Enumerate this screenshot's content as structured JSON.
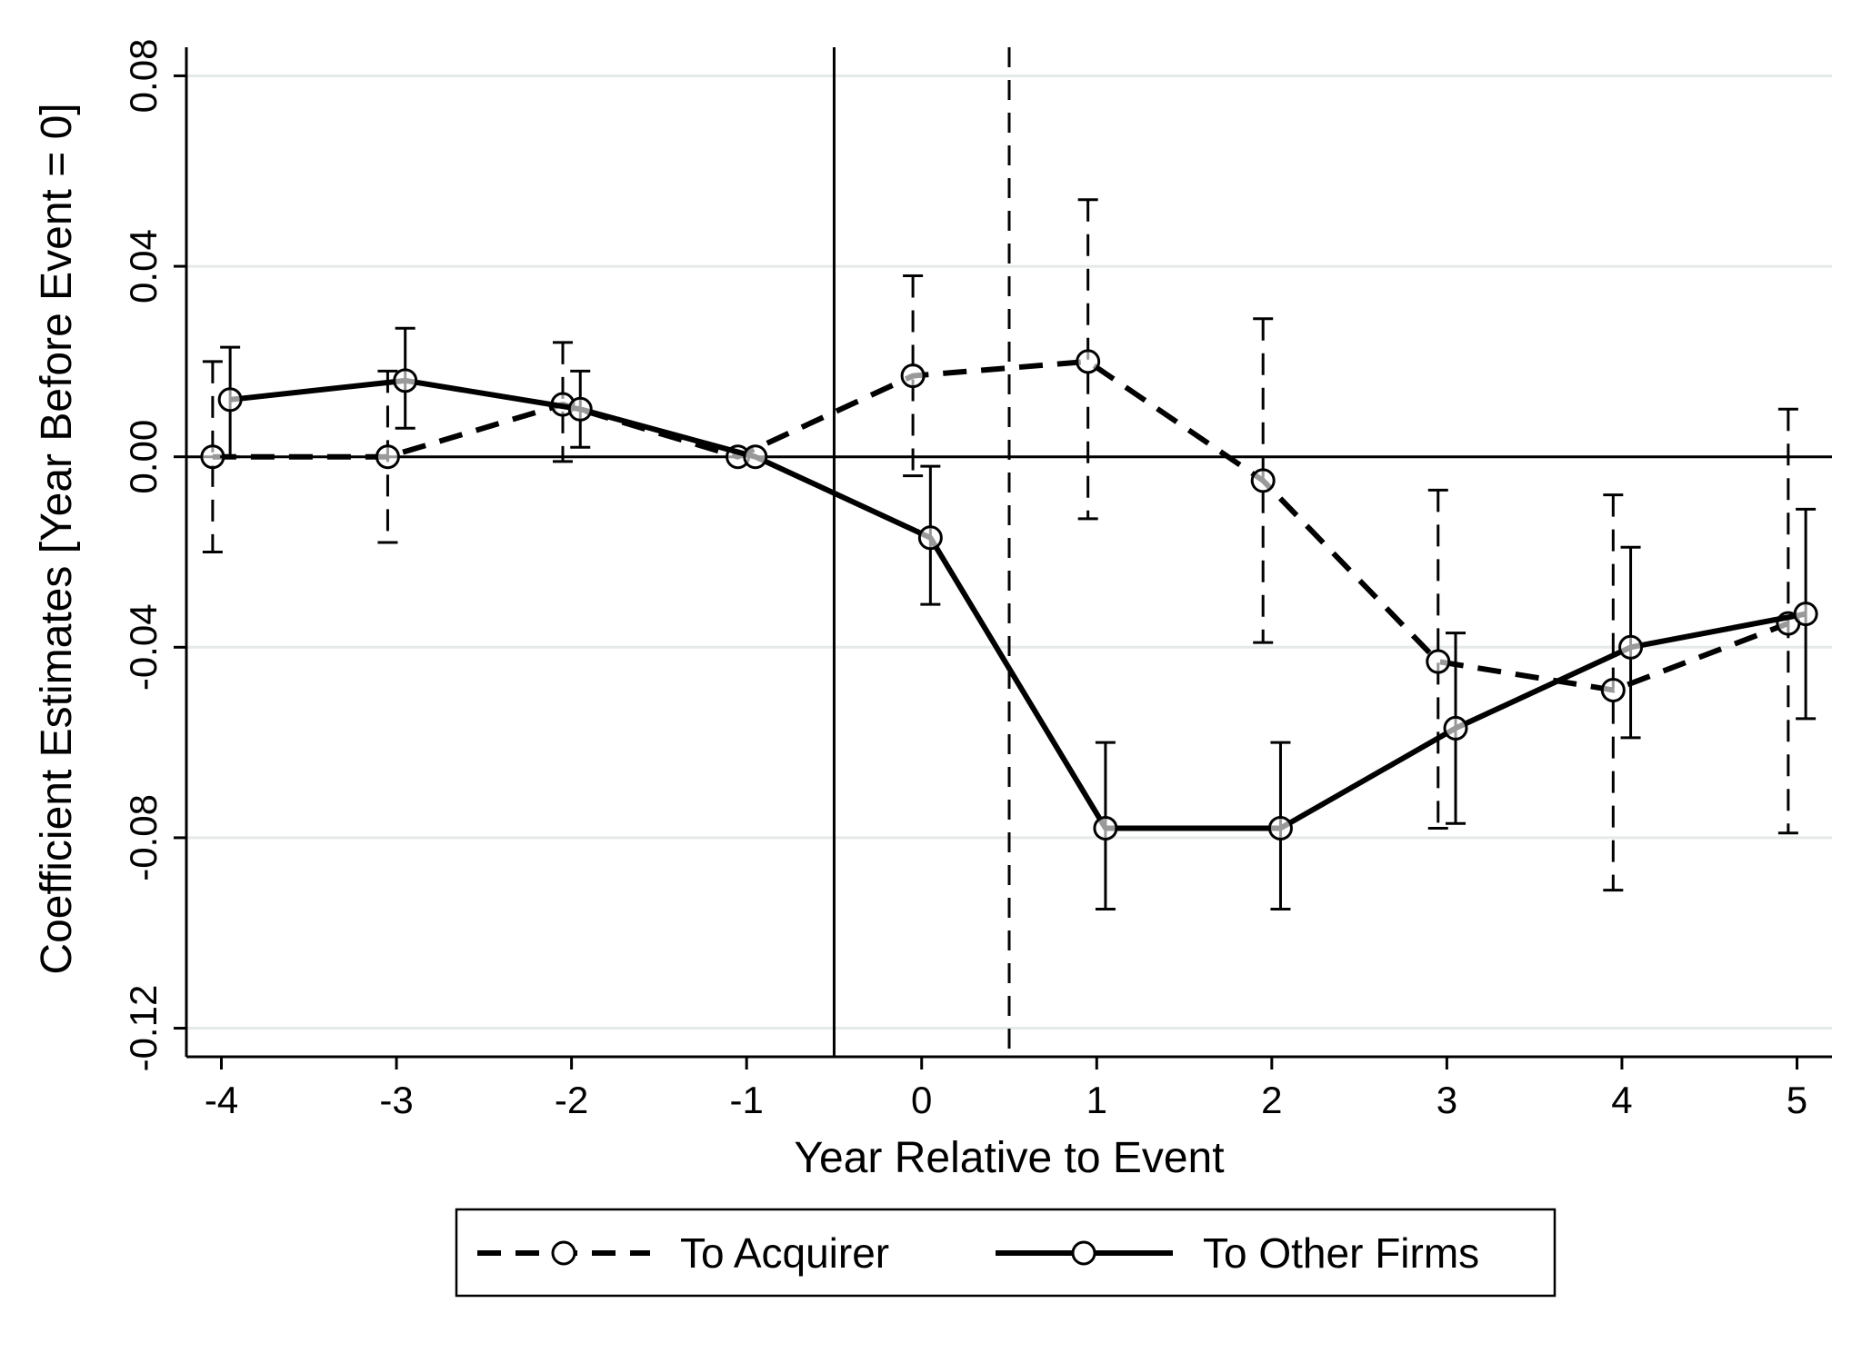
{
  "chart_data": {
    "type": "line",
    "xlabel": "Year Relative to Event",
    "ylabel": "Coefficient Estimates [Year Before Event = 0]",
    "x": [
      -4,
      -3,
      -2,
      -1,
      0,
      1,
      2,
      3,
      4,
      5
    ],
    "xticks": [
      "-4",
      "-3",
      "-2",
      "-1",
      "0",
      "1",
      "2",
      "3",
      "4",
      "5"
    ],
    "xlim": [
      -4.2,
      5.2
    ],
    "yticks": [
      "0.08",
      "0.04",
      "0.00",
      "-0.04",
      "-0.08",
      "-0.12"
    ],
    "ytick_values": [
      0.08,
      0.04,
      0.0,
      -0.04,
      -0.08,
      -0.12
    ],
    "ylim": [
      -0.126,
      0.086
    ],
    "grid": true,
    "reference_lines": {
      "horizontal_y": 0.0,
      "vertical_solid_x": -0.5,
      "vertical_dashed_x": 0.5
    },
    "series": [
      {
        "name": "To Acquirer",
        "style": "dashed",
        "x_offset": -0.05,
        "values": [
          0.0,
          0.0,
          0.011,
          0.0,
          0.017,
          0.02,
          -0.005,
          -0.043,
          -0.049,
          -0.035
        ],
        "ci_low": [
          -0.02,
          -0.018,
          -0.001,
          0.0,
          -0.004,
          -0.013,
          -0.039,
          -0.078,
          -0.091,
          -0.079
        ],
        "ci_high": [
          0.02,
          0.018,
          0.024,
          0.0,
          0.038,
          0.054,
          0.029,
          -0.007,
          -0.008,
          0.01
        ]
      },
      {
        "name": "To Other Firms",
        "style": "solid",
        "x_offset": 0.05,
        "values": [
          0.012,
          0.016,
          0.01,
          0.0,
          -0.017,
          -0.078,
          -0.078,
          -0.057,
          -0.04,
          -0.033
        ],
        "ci_low": [
          0.0,
          0.006,
          0.002,
          0.0,
          -0.031,
          -0.095,
          -0.095,
          -0.077,
          -0.059,
          -0.055
        ],
        "ci_high": [
          0.023,
          0.027,
          0.018,
          0.0,
          -0.002,
          -0.06,
          -0.06,
          -0.037,
          -0.019,
          -0.011
        ]
      }
    ],
    "legend": {
      "position": "bottom-center",
      "entries": [
        "To Acquirer",
        "To Other Firms"
      ]
    }
  }
}
